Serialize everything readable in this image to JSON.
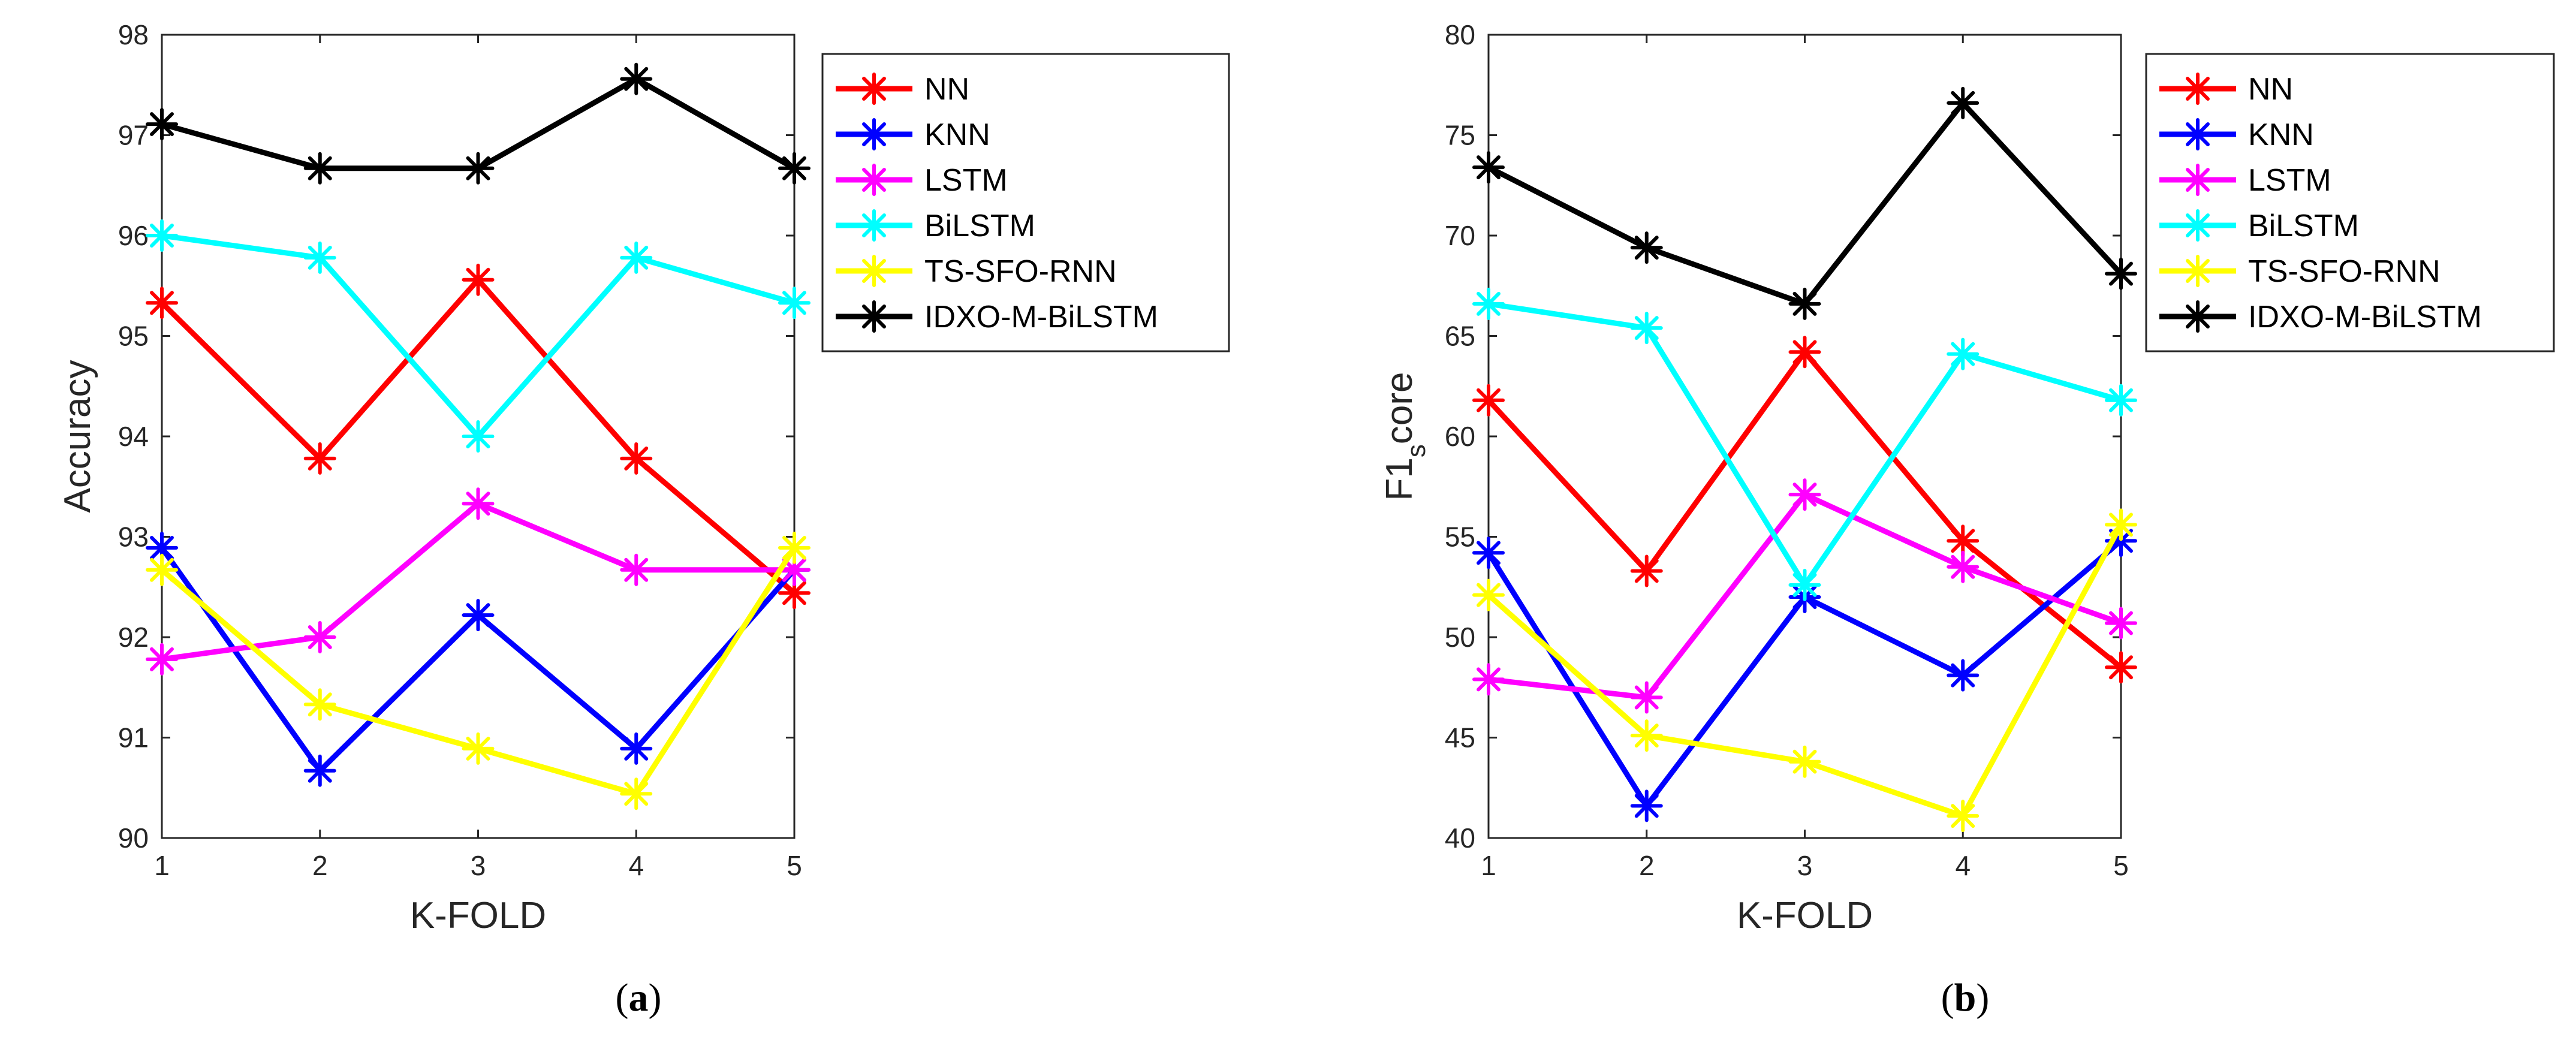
{
  "chart_data": [
    {
      "type": "line",
      "panel_label": "a",
      "xlabel": "K-FOLD",
      "ylabel": "Accuracy",
      "ylabel_sub": "",
      "ylabel_tail": "",
      "x": [
        1,
        2,
        3,
        4,
        5
      ],
      "xlim": [
        1,
        5
      ],
      "ylim": [
        90,
        98
      ],
      "xticks": [
        1,
        2,
        3,
        4,
        5
      ],
      "yticks": [
        90,
        91,
        92,
        93,
        94,
        95,
        96,
        97,
        98
      ],
      "grid": false,
      "legend_position": "outside-top-right",
      "series": [
        {
          "name": "NN",
          "color": "#ff0000",
          "values": [
            95.33,
            93.78,
            95.56,
            93.78,
            92.44
          ]
        },
        {
          "name": "KNN",
          "color": "#0000ff",
          "values": [
            92.89,
            90.67,
            92.22,
            90.89,
            92.67
          ]
        },
        {
          "name": "LSTM",
          "color": "#ff00ff",
          "values": [
            91.78,
            92.0,
            93.33,
            92.67,
            92.67
          ]
        },
        {
          "name": "BiLSTM",
          "color": "#00ffff",
          "values": [
            96.0,
            95.78,
            94.0,
            95.78,
            95.33
          ]
        },
        {
          "name": "TS-SFO-RNN",
          "color": "#ffff00",
          "values": [
            92.67,
            91.33,
            90.89,
            90.44,
            92.89
          ]
        },
        {
          "name": "IDXO-M-BiLSTM",
          "color": "#000000",
          "values": [
            97.11,
            96.67,
            96.67,
            97.56,
            96.67
          ]
        }
      ]
    },
    {
      "type": "line",
      "panel_label": "b",
      "xlabel": "K-FOLD",
      "ylabel": "F1",
      "ylabel_sub": "s",
      "ylabel_tail": "core",
      "x": [
        1,
        2,
        3,
        4,
        5
      ],
      "xlim": [
        1,
        5
      ],
      "ylim": [
        40,
        80
      ],
      "xticks": [
        1,
        2,
        3,
        4,
        5
      ],
      "yticks": [
        40,
        45,
        50,
        55,
        60,
        65,
        70,
        75,
        80
      ],
      "grid": false,
      "legend_position": "outside-top-right",
      "series": [
        {
          "name": "NN",
          "color": "#ff0000",
          "values": [
            61.8,
            53.3,
            64.2,
            54.8,
            48.5
          ]
        },
        {
          "name": "KNN",
          "color": "#0000ff",
          "values": [
            54.2,
            41.6,
            52.0,
            48.1,
            54.8
          ]
        },
        {
          "name": "LSTM",
          "color": "#ff00ff",
          "values": [
            47.9,
            47.0,
            57.1,
            53.5,
            50.7
          ]
        },
        {
          "name": "BiLSTM",
          "color": "#00ffff",
          "values": [
            66.6,
            65.4,
            52.6,
            64.1,
            61.8
          ]
        },
        {
          "name": "TS-SFO-RNN",
          "color": "#ffff00",
          "values": [
            52.1,
            45.1,
            43.8,
            41.1,
            55.6
          ]
        },
        {
          "name": "IDXO-M-BiLSTM",
          "color": "#000000",
          "values": [
            73.4,
            69.4,
            66.6,
            76.6,
            68.1
          ]
        }
      ]
    }
  ]
}
